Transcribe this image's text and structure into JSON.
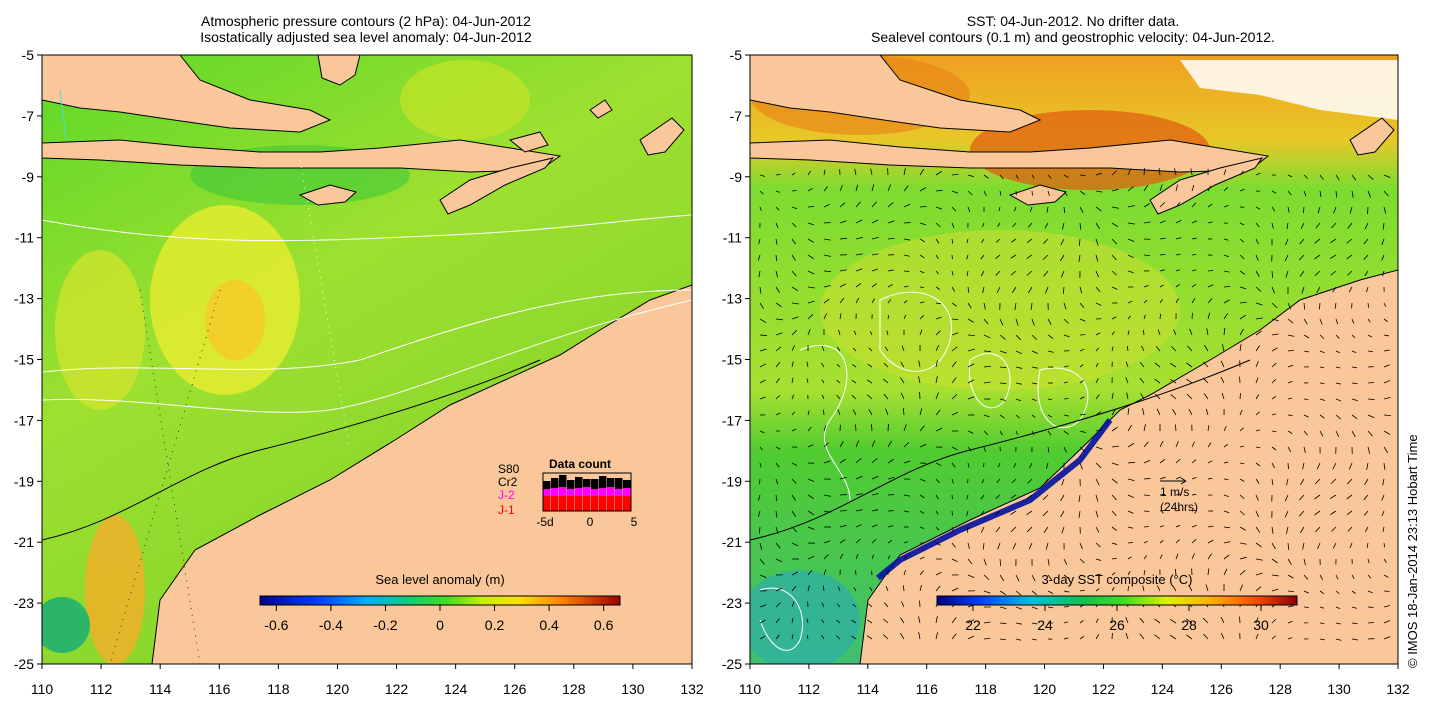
{
  "left_panel": {
    "title_line1": "Atmospheric pressure contours (2 hPa): 04-Jun-2012",
    "title_line2": "Isostatically adjusted sea level anomaly: 04-Jun-2012",
    "y_ticks": [
      "-5",
      "-7",
      "-9",
      "-11",
      "-13",
      "-15",
      "-17",
      "-19",
      "-21",
      "-23",
      "-25"
    ],
    "x_ticks": [
      "110",
      "112",
      "114",
      "116",
      "118",
      "120",
      "122",
      "124",
      "126",
      "128",
      "130",
      "132"
    ],
    "colorbar": {
      "label": "Sea level anomaly (m)",
      "ticks": [
        "-0.6",
        "-0.4",
        "-0.2",
        "0",
        "0.2",
        "0.4",
        "0.6"
      ]
    },
    "data_count": {
      "title": "Data count",
      "legend": [
        {
          "label": "S80",
          "color": "#000000"
        },
        {
          "label": "Cr2",
          "color": "#000000"
        },
        {
          "label": "J-2",
          "color": "#ff00ff"
        },
        {
          "label": "J-1",
          "color": "#ff0000"
        }
      ],
      "x_ticks": [
        "-5d",
        "0",
        "5"
      ]
    }
  },
  "right_panel": {
    "title_line1": "SST: 04-Jun-2012. No drifter data.",
    "title_line2": "Sealevel contours (0.1 m) and geostrophic velocity: 04-Jun-2012.",
    "y_ticks": [
      "-5",
      "-7",
      "-9",
      "-11",
      "-13",
      "-15",
      "-17",
      "-19",
      "-21",
      "-23",
      "-25"
    ],
    "x_ticks": [
      "110",
      "112",
      "114",
      "116",
      "118",
      "120",
      "122",
      "124",
      "126",
      "128",
      "130",
      "132"
    ],
    "colorbar": {
      "label": "3-day SST composite (°C)",
      "ticks": [
        "22",
        "24",
        "26",
        "28",
        "30"
      ]
    },
    "velocity_key": {
      "line1": "1 m/s",
      "line2": "(24hrs)"
    }
  },
  "credit": "© IMOS 18-Jan-2014 23:13 Hobart Time",
  "colors": {
    "land": "#fac79a",
    "coast": "#000000"
  }
}
